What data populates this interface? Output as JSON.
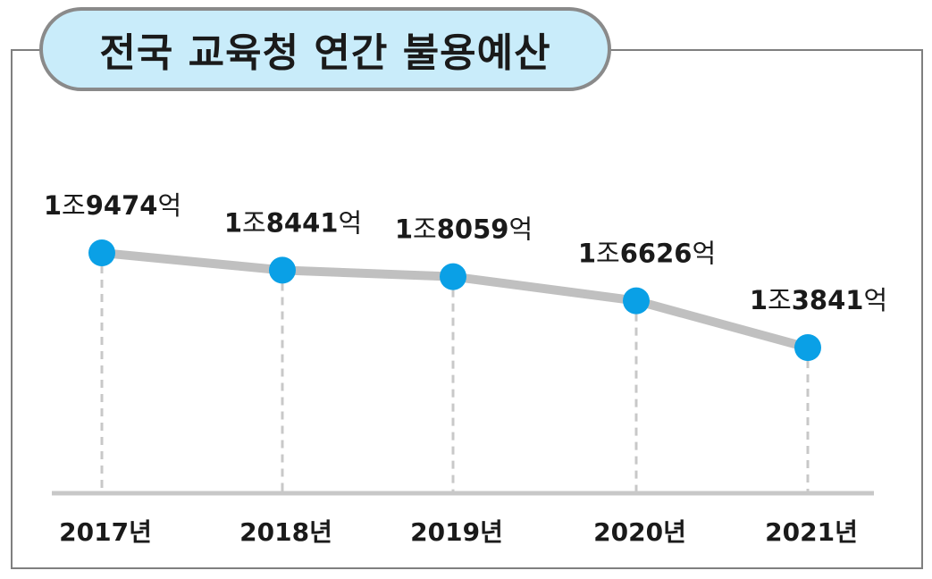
{
  "chart_data": {
    "type": "line",
    "title": "전국 교육청 연간 불용예산",
    "categories": [
      "2017년",
      "2018년",
      "2019년",
      "2020년",
      "2021년"
    ],
    "values": [
      19474,
      18441,
      18059,
      16626,
      13841
    ],
    "value_unit": "억",
    "data_labels": [
      {
        "pre": "1",
        "mid": "조",
        "num": "9474",
        "unit": "억"
      },
      {
        "pre": "1",
        "mid": "조",
        "num": "8441",
        "unit": "억"
      },
      {
        "pre": "1",
        "mid": "조",
        "num": "8059",
        "unit": "억"
      },
      {
        "pre": "1",
        "mid": "조",
        "num": "6626",
        "unit": "억"
      },
      {
        "pre": "1",
        "mid": "조",
        "num": "3841",
        "unit": "억"
      }
    ],
    "xlabel": "",
    "ylabel": "",
    "grid": false,
    "legend": "none",
    "colors": {
      "line": "#c0c0c0",
      "marker": "#0aa0e6",
      "dropline": "#c8c8c8",
      "baseline": "#c8c8c8",
      "title_bg": "#c9ecfa",
      "border": "#7f7f7f"
    }
  }
}
